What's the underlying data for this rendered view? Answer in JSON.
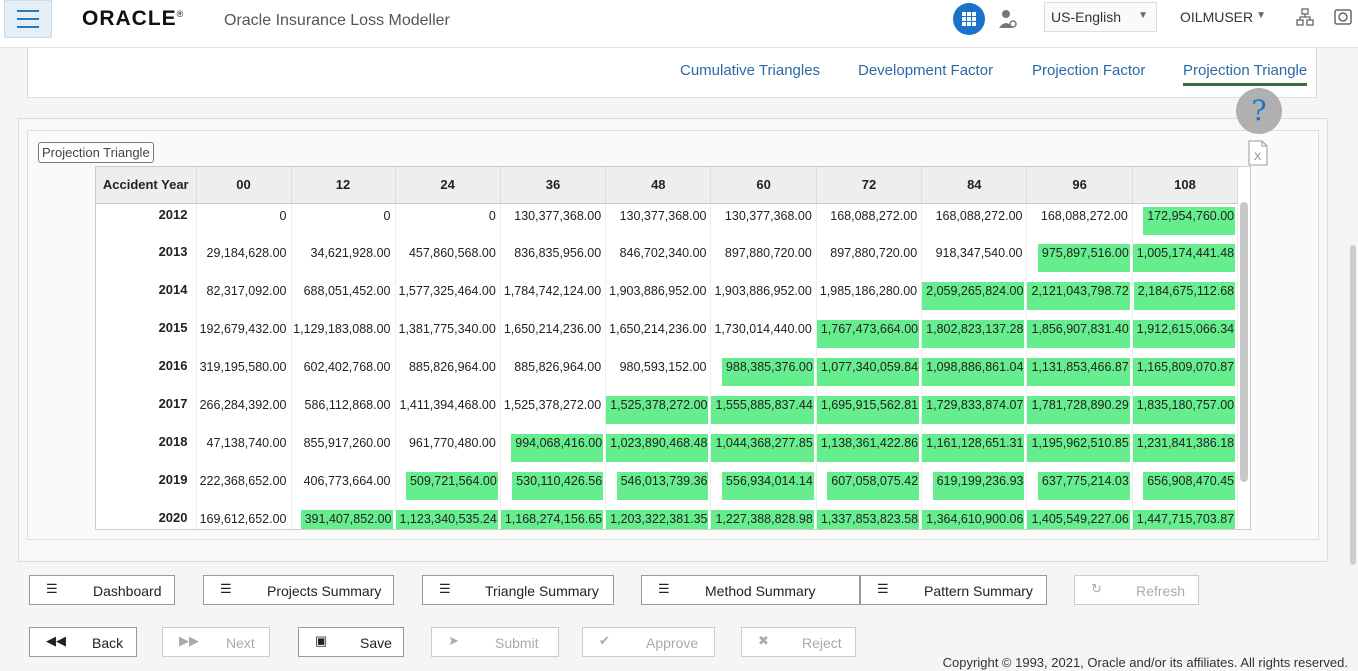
{
  "header": {
    "logo": "ORACLE",
    "app_title": "Oracle Insurance Loss Modeller",
    "language": "US-English",
    "user": "OILMUSER"
  },
  "tabs": [
    {
      "label": "Cumulative Triangles",
      "active": false
    },
    {
      "label": "Development Factor",
      "active": false
    },
    {
      "label": "Projection Factor",
      "active": false
    },
    {
      "label": "Projection Triangle",
      "active": true
    }
  ],
  "help": {
    "label": "?"
  },
  "section": {
    "label": "Projection Triangle"
  },
  "table": {
    "headers": [
      "Accident Year",
      "00",
      "12",
      "24",
      "36",
      "48",
      "60",
      "72",
      "84",
      "96",
      "108"
    ],
    "rows": [
      {
        "year": "2012",
        "cells": [
          "0",
          "0",
          "0",
          "130,377,368.00",
          "130,377,368.00",
          "130,377,368.00",
          "168,088,272.00",
          "168,088,272.00",
          "168,088,272.00",
          "172,954,760.00"
        ],
        "proj_from": 10
      },
      {
        "year": "2013",
        "cells": [
          "29,184,628.00",
          "34,621,928.00",
          "457,860,568.00",
          "836,835,956.00",
          "846,702,340.00",
          "897,880,720.00",
          "897,880,720.00",
          "918,347,540.00",
          "975,897,516.00",
          "1,005,174,441.48"
        ],
        "proj_from": 9
      },
      {
        "year": "2014",
        "cells": [
          "82,317,092.00",
          "688,051,452.00",
          "1,577,325,464.00",
          "1,784,742,124.00",
          "1,903,886,952.00",
          "1,903,886,952.00",
          "1,985,186,280.00",
          "2,059,265,824.00",
          "2,121,043,798.72",
          "2,184,675,112.68"
        ],
        "proj_from": 8
      },
      {
        "year": "2015",
        "cells": [
          "192,679,432.00",
          "1,129,183,088.00",
          "1,381,775,340.00",
          "1,650,214,236.00",
          "1,650,214,236.00",
          "1,730,014,440.00",
          "1,767,473,664.00",
          "1,802,823,137.28",
          "1,856,907,831.40",
          "1,912,615,066.34"
        ],
        "proj_from": 7
      },
      {
        "year": "2016",
        "cells": [
          "319,195,580.00",
          "602,402,768.00",
          "885,826,964.00",
          "885,826,964.00",
          "980,593,152.00",
          "988,385,376.00",
          "1,077,340,059.84",
          "1,098,886,861.04",
          "1,131,853,466.87",
          "1,165,809,070.87"
        ],
        "proj_from": 6
      },
      {
        "year": "2017",
        "cells": [
          "266,284,392.00",
          "586,112,868.00",
          "1,411,394,468.00",
          "1,525,378,272.00",
          "1,525,378,272.00",
          "1,555,885,837.44",
          "1,695,915,562.81",
          "1,729,833,874.07",
          "1,781,728,890.29",
          "1,835,180,757.00"
        ],
        "proj_from": 5
      },
      {
        "year": "2018",
        "cells": [
          "47,138,740.00",
          "855,917,260.00",
          "961,770,480.00",
          "994,068,416.00",
          "1,023,890,468.48",
          "1,044,368,277.85",
          "1,138,361,422.86",
          "1,161,128,651.31",
          "1,195,962,510.85",
          "1,231,841,386.18"
        ],
        "proj_from": 4
      },
      {
        "year": "2019",
        "cells": [
          "222,368,652.00",
          "406,773,664.00",
          "509,721,564.00",
          "530,110,426.56",
          "546,013,739.36",
          "556,934,014.14",
          "607,058,075.42",
          "619,199,236.93",
          "637,775,214.03",
          "656,908,470.45"
        ],
        "proj_from": 3
      },
      {
        "year": "2020",
        "cells": [
          "169,612,652.00",
          "391,407,852.00",
          "1,123,340,535.24",
          "1,168,274,156.65",
          "1,203,322,381.35",
          "1,227,388,828.98",
          "1,337,853,823.58",
          "1,364,610,900.06",
          "1,405,549,227.06",
          "1,447,715,703.87"
        ],
        "proj_from": 2
      }
    ]
  },
  "buttons_row1": [
    {
      "label": "Dashboard",
      "icon": "list-icon",
      "enabled": true
    },
    {
      "label": "Projects Summary",
      "icon": "list-icon",
      "enabled": true
    },
    {
      "label": "Triangle Summary",
      "icon": "list-icon",
      "enabled": true
    },
    {
      "label": "Method Summary",
      "icon": "list-icon",
      "enabled": true
    },
    {
      "label": "Pattern Summary",
      "icon": "list-icon",
      "enabled": true
    },
    {
      "label": "Refresh",
      "icon": "refresh-icon",
      "enabled": false
    }
  ],
  "buttons_row2": [
    {
      "label": "Back",
      "icon": "back-icon",
      "enabled": true
    },
    {
      "label": "Next",
      "icon": "next-icon",
      "enabled": false
    },
    {
      "label": "Save",
      "icon": "save-icon",
      "enabled": true
    },
    {
      "label": "Submit",
      "icon": "submit-icon",
      "enabled": false
    },
    {
      "label": "Approve",
      "icon": "check-icon",
      "enabled": false
    },
    {
      "label": "Reject",
      "icon": "x-icon",
      "enabled": false
    }
  ],
  "footer": {
    "copyright": "Copyright © 1993, 2021, Oracle and/or its affiliates. All rights reserved."
  },
  "colors": {
    "projected_cell": "#66ee8e",
    "accent": "#1a73c8",
    "tab_active_border": "#3c6e3f"
  }
}
